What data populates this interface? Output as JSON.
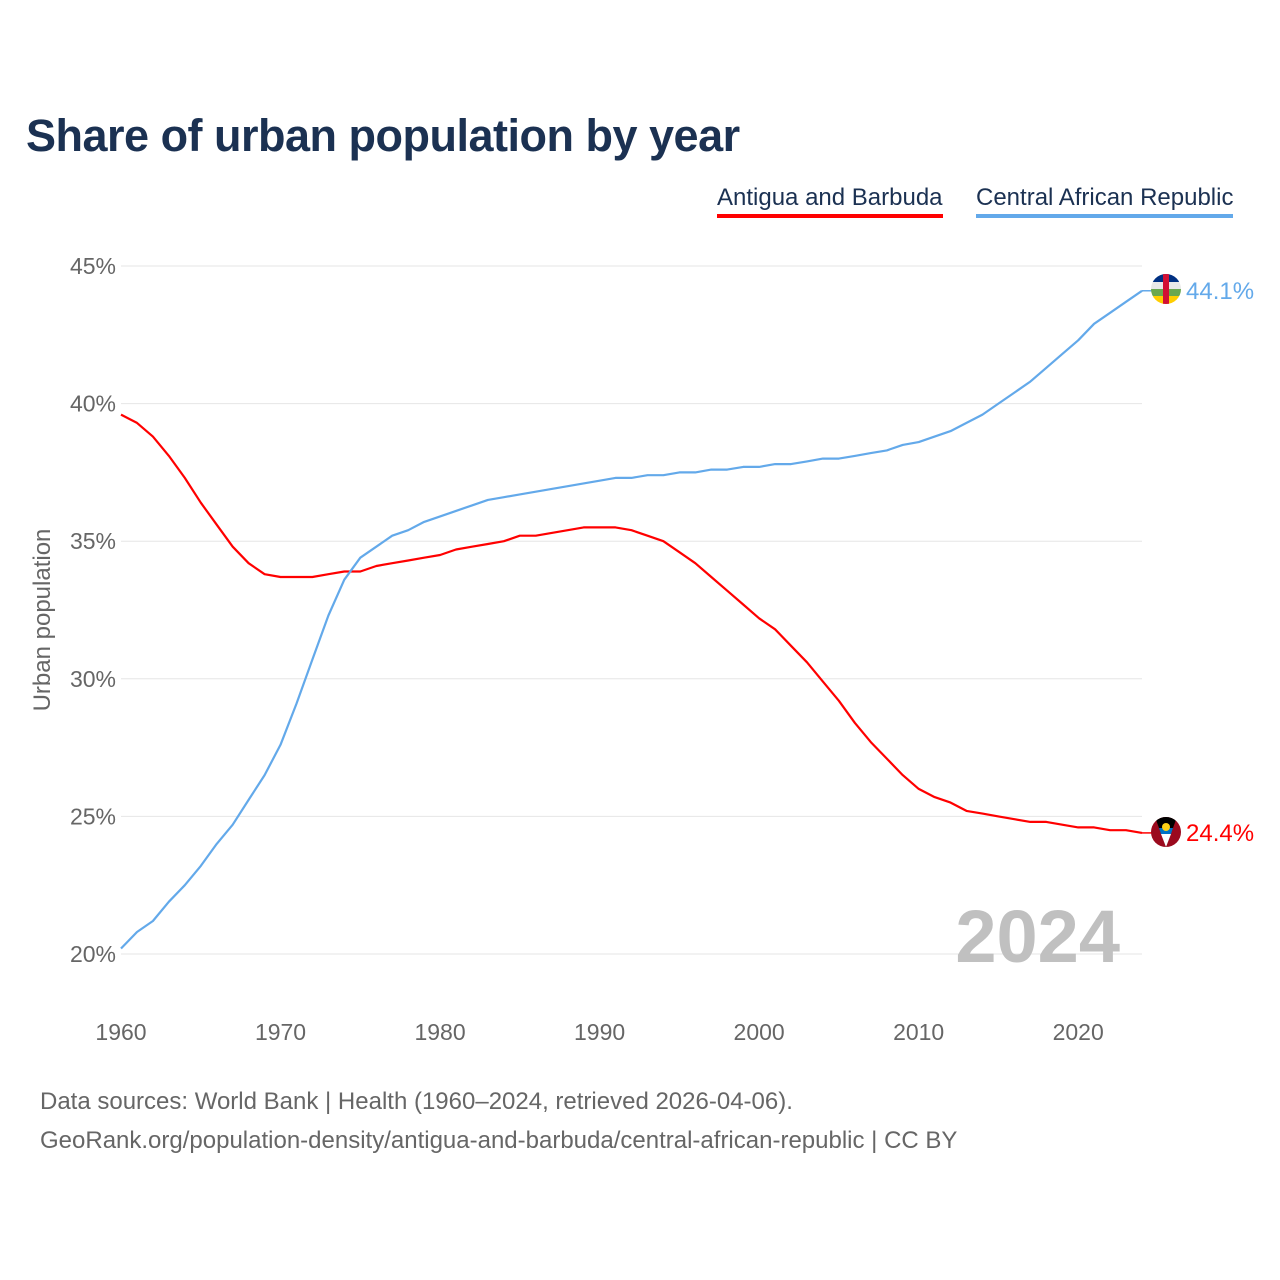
{
  "chart_data": {
    "type": "line",
    "title": "Share of urban population by year",
    "ylabel": "Urban population",
    "xlabel": "",
    "ylim": [
      20,
      45
    ],
    "xlim": [
      1960,
      2024
    ],
    "yticks": [
      "20%",
      "25%",
      "30%",
      "35%",
      "40%",
      "45%"
    ],
    "ytick_values": [
      20,
      25,
      30,
      35,
      40,
      45
    ],
    "xticks": [
      "1960",
      "1970",
      "1980",
      "1990",
      "2000",
      "2010",
      "2020"
    ],
    "xtick_values": [
      1960,
      1970,
      1980,
      1990,
      2000,
      2010,
      2020
    ],
    "grid": true,
    "legend_position": "top-right",
    "year_watermark": "2024",
    "x": [
      1960,
      1961,
      1962,
      1963,
      1964,
      1965,
      1966,
      1967,
      1968,
      1969,
      1970,
      1971,
      1972,
      1973,
      1974,
      1975,
      1976,
      1977,
      1978,
      1979,
      1980,
      1981,
      1982,
      1983,
      1984,
      1985,
      1986,
      1987,
      1988,
      1989,
      1990,
      1991,
      1992,
      1993,
      1994,
      1995,
      1996,
      1997,
      1998,
      1999,
      2000,
      2001,
      2002,
      2003,
      2004,
      2005,
      2006,
      2007,
      2008,
      2009,
      2010,
      2011,
      2012,
      2013,
      2014,
      2015,
      2016,
      2017,
      2018,
      2019,
      2020,
      2021,
      2022,
      2023,
      2024
    ],
    "series": [
      {
        "name": "Antigua and Barbuda",
        "color": "#ff0000",
        "end_label": "24.4%",
        "values": [
          39.6,
          39.3,
          38.8,
          38.1,
          37.3,
          36.4,
          35.6,
          34.8,
          34.2,
          33.8,
          33.7,
          33.7,
          33.7,
          33.8,
          33.9,
          33.9,
          34.1,
          34.2,
          34.3,
          34.4,
          34.5,
          34.7,
          34.8,
          34.9,
          35.0,
          35.2,
          35.2,
          35.3,
          35.4,
          35.5,
          35.5,
          35.5,
          35.4,
          35.2,
          35.0,
          34.6,
          34.2,
          33.7,
          33.2,
          32.7,
          32.2,
          31.8,
          31.2,
          30.6,
          29.9,
          29.2,
          28.4,
          27.7,
          27.1,
          26.5,
          26.0,
          25.7,
          25.5,
          25.2,
          25.1,
          25.0,
          24.9,
          24.8,
          24.8,
          24.7,
          24.6,
          24.6,
          24.5,
          24.5,
          24.4
        ]
      },
      {
        "name": "Central African Republic",
        "color": "#63a9ea",
        "end_label": "44.1%",
        "values": [
          20.2,
          20.8,
          21.2,
          21.9,
          22.5,
          23.2,
          24.0,
          24.7,
          25.6,
          26.5,
          27.6,
          29.1,
          30.7,
          32.3,
          33.6,
          34.4,
          34.8,
          35.2,
          35.4,
          35.7,
          35.9,
          36.1,
          36.3,
          36.5,
          36.6,
          36.7,
          36.8,
          36.9,
          37.0,
          37.1,
          37.2,
          37.3,
          37.3,
          37.4,
          37.4,
          37.5,
          37.5,
          37.6,
          37.6,
          37.7,
          37.7,
          37.8,
          37.8,
          37.9,
          38.0,
          38.0,
          38.1,
          38.2,
          38.3,
          38.5,
          38.6,
          38.8,
          39.0,
          39.3,
          39.6,
          40.0,
          40.4,
          40.8,
          41.3,
          41.8,
          42.3,
          42.9,
          43.3,
          43.7,
          44.1
        ]
      }
    ]
  },
  "footer": {
    "sources": "Data sources: World Bank | Health (1960–2024, retrieved 2026-04-06).",
    "url": "GeoRank.org/population-density/antigua-and-barbuda/central-african-republic | CC BY"
  }
}
